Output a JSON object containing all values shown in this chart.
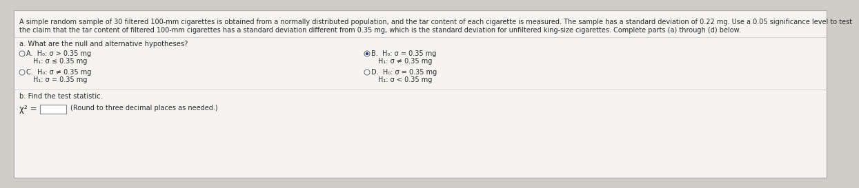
{
  "bg_color": "#d0ccc8",
  "content_bg": "#f5f4f2",
  "text_color": "#2a2a2a",
  "header_line1": "A simple random sample of 30 filtered 100-mm cigarettes is obtained from a normally distributed population, and the tar content of each cigarette is measured. The sample has a standard deviation of 0.22 mg. Use a 0.05 significance level to test",
  "header_line2": "the claim that the tar content of filtered 100-mm cigarettes has a standard deviation different from 0.35 mg, which is the standard deviation for unfiltered king-size cigarettes. Complete parts (a) through (d) below.",
  "part_a_label": "a. What are the null and alternative hypotheses?",
  "option_A_line1": "H₀: σ > 0.35 mg",
  "option_A_line2": "H₁: σ ≤ 0.35 mg",
  "option_B_line1": "H₀: σ = 0.35 mg",
  "option_B_line2": "H₁: σ ≠ 0.35 mg",
  "option_C_line1": "H₀: σ ≠ 0.35 mg",
  "option_C_line2": "H₁: σ = 0.35 mg",
  "option_D_line1": "H₀: σ = 0.35 mg",
  "option_D_line2": "H₁: σ < 0.35 mg",
  "part_b_label": "b. Find the test statistic.",
  "chi2_label": "χ² =",
  "chi2_hint": "(Round to three decimal places as needed.)",
  "fs_header": 7.0,
  "fs_body": 7.2,
  "fs_option": 7.0
}
